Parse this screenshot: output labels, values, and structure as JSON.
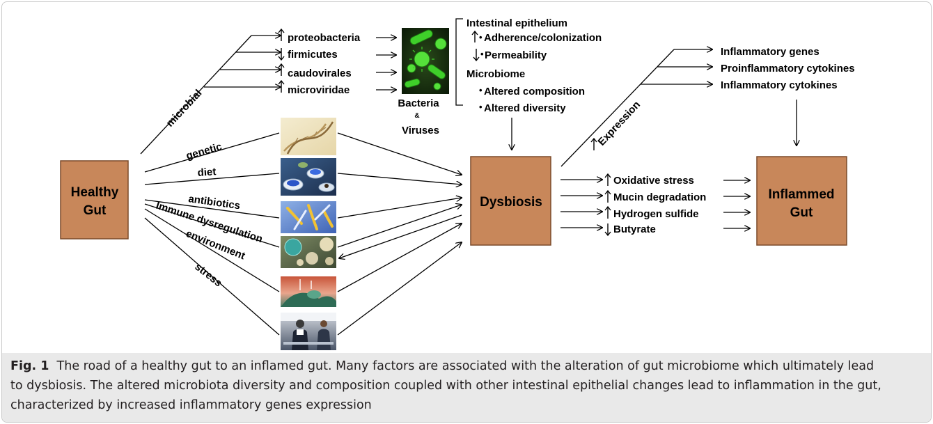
{
  "nodes": {
    "healthy_line1": "Healthy",
    "healthy_line2": "Gut",
    "dysbiosis": "Dysbiosis",
    "inflamed_line1": "Inflammed",
    "inflamed_line2": "Gut"
  },
  "factors": {
    "microbial": "microbial",
    "genetic": "genetic",
    "diet": "diet",
    "antibiotics": "antibiotics",
    "immune": "Immune dysregulation",
    "environment": "environment",
    "stress": "stress"
  },
  "microbes": {
    "items": [
      "proteobacteria",
      "firmicutes",
      "caudovirales",
      "microviridae"
    ],
    "directions": [
      "up",
      "down",
      "up",
      "up"
    ],
    "image_label_1": "Bacteria",
    "image_label_amp": "&",
    "image_label_2": "Viruses"
  },
  "effects": {
    "epithelium_title": "Intestinal epithelium",
    "adherence": "Adherence/colonization",
    "permeability": "Permeability",
    "microbiome_title": "Microbiome",
    "composition": "Altered composition",
    "diversity": "Altered diversity"
  },
  "expression": {
    "label": "Expression",
    "items": [
      "Inflammatory genes",
      "Proinflammatory cytokines",
      "Inflammatory cytokines"
    ]
  },
  "outcomes": {
    "items": [
      "Oxidative stress",
      "Mucin degradation",
      "Hydrogen sulfide",
      "Butyrate"
    ],
    "directions": [
      "up",
      "up",
      "up",
      "down"
    ]
  },
  "caption": {
    "label": "Fig. 1",
    "line1": "The road of a healthy gut to an inflamed gut. Many factors are associated with the alteration of gut microbiome which ultimately lead",
    "line2": "to dysbiosis. The altered microbiota diversity and composition coupled with other intestinal epithelial changes lead to inflammation in the gut,",
    "line3": "characterized by increased inflammatory genes expression"
  },
  "colors": {
    "box_fill": "#c8875a",
    "box_stroke": "#7a4a2a",
    "caption_bg": "#e9e9e9"
  },
  "icons": [
    "dna-image",
    "diet-image",
    "antibiotics-image",
    "immune-cells-image",
    "environment-image",
    "stress-image",
    "bacteria-virus-image"
  ]
}
